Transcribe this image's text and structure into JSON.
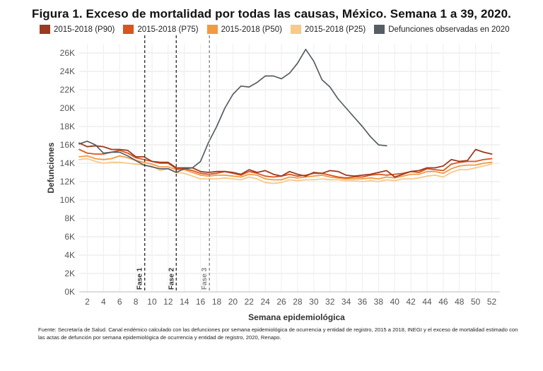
{
  "chart_data": {
    "type": "line",
    "title": "Figura 1. Exceso de mortalidad por todas las causas, México. Semana 1 a 39, 2020.",
    "xlabel": "Semana epidemiológica",
    "ylabel": "Defunciones",
    "xlim": [
      1,
      53
    ],
    "ylim": [
      0,
      27000
    ],
    "x_ticks": [
      2,
      4,
      6,
      8,
      10,
      12,
      14,
      16,
      18,
      20,
      22,
      24,
      26,
      28,
      30,
      32,
      34,
      36,
      38,
      40,
      42,
      44,
      46,
      48,
      50,
      52
    ],
    "y_ticks": [
      {
        "value": 0,
        "label": "0K"
      },
      {
        "value": 2000,
        "label": "2K"
      },
      {
        "value": 4000,
        "label": "4K"
      },
      {
        "value": 6000,
        "label": "6K"
      },
      {
        "value": 8000,
        "label": "8K"
      },
      {
        "value": 10000,
        "label": "10K"
      },
      {
        "value": 12000,
        "label": "12K"
      },
      {
        "value": 14000,
        "label": "14K"
      },
      {
        "value": 16000,
        "label": "16K"
      },
      {
        "value": 18000,
        "label": "18K"
      },
      {
        "value": 20000,
        "label": "20K"
      },
      {
        "value": 22000,
        "label": "22K"
      },
      {
        "value": 24000,
        "label": "24K"
      },
      {
        "value": 26000,
        "label": "26K"
      }
    ],
    "grid": true,
    "legend_position": "top",
    "phases": [
      {
        "label": "Fase 1",
        "week": 9.1,
        "color": "#333333"
      },
      {
        "label": "Fase 2",
        "week": 13.0,
        "color": "#333333"
      },
      {
        "label": "Fase 3",
        "week": 17.1,
        "color": "#888888"
      }
    ],
    "series": [
      {
        "name": "2015-2018 (P25)",
        "color": "#f7c98a",
        "values": [
          14400,
          14500,
          14200,
          14000,
          14100,
          14100,
          14000,
          13900,
          13800,
          13700,
          13200,
          13400,
          13000,
          12900,
          12600,
          12300,
          12300,
          12300,
          12400,
          12300,
          12200,
          12500,
          12300,
          11900,
          11800,
          11900,
          12200,
          12100,
          12200,
          12200,
          12300,
          12200,
          12200,
          12100,
          12100,
          12000,
          12100,
          12000,
          12200,
          12100,
          12300,
          12300,
          12400,
          12600,
          12700,
          12500,
          13000,
          13300,
          13300,
          13500,
          13700,
          13900
        ]
      },
      {
        "name": "2015-2018 (P50)",
        "color": "#f19a42",
        "values": [
          14700,
          14800,
          14500,
          14400,
          14500,
          14800,
          14600,
          14300,
          14100,
          13900,
          13600,
          13600,
          13300,
          13300,
          13000,
          12700,
          12600,
          12700,
          12700,
          12600,
          12500,
          12800,
          12700,
          12300,
          12200,
          12200,
          12500,
          12400,
          12500,
          12600,
          12700,
          12500,
          12400,
          12300,
          12300,
          12300,
          12400,
          12300,
          12500,
          12400,
          12600,
          12800,
          12800,
          13100,
          13100,
          12900,
          13400,
          13700,
          13800,
          13800,
          14000,
          14100
        ]
      },
      {
        "name": "2015-2018 (P75)",
        "color": "#d9541e",
        "values": [
          15500,
          15100,
          15000,
          15000,
          15200,
          15400,
          15100,
          14600,
          14400,
          14200,
          14000,
          14000,
          13400,
          13400,
          13200,
          12900,
          12800,
          12900,
          13100,
          12900,
          12700,
          13100,
          12900,
          12600,
          12500,
          12600,
          12800,
          12600,
          12700,
          12900,
          12900,
          12700,
          12500,
          12400,
          12500,
          12500,
          12700,
          12800,
          12700,
          12800,
          12900,
          13100,
          13000,
          13400,
          13300,
          13200,
          13900,
          14100,
          14200,
          14200,
          14400,
          14500
        ]
      },
      {
        "name": "2015-2018 (P90)",
        "color": "#9c3a1f",
        "values": [
          16200,
          15800,
          15900,
          15800,
          15500,
          15500,
          15400,
          14700,
          14700,
          14200,
          14100,
          14100,
          13500,
          13500,
          13500,
          13100,
          13000,
          13100,
          13100,
          13000,
          12800,
          13300,
          13000,
          13200,
          12800,
          12600,
          13100,
          12800,
          12600,
          13000,
          12900,
          13200,
          13100,
          12700,
          12600,
          12700,
          12800,
          13000,
          13200,
          12500,
          12800,
          13100,
          13200,
          13500,
          13500,
          13700,
          14400,
          14200,
          14300,
          15500,
          15200,
          15000
        ]
      },
      {
        "name": "Defunciones observadas en 2020",
        "color": "#565d63",
        "values": [
          16100,
          16400,
          16000,
          15100,
          15200,
          15200,
          14800,
          14300,
          13800,
          13600,
          13400,
          13400,
          13000,
          13400,
          13500,
          14200,
          16300,
          18000,
          20000,
          21500,
          22400,
          22300,
          22800,
          23500,
          23500,
          23200,
          23800,
          24900,
          26400,
          25100,
          23100,
          22300,
          21000,
          20000,
          19000,
          18000,
          16900,
          16000,
          15900
        ]
      }
    ]
  }
}
